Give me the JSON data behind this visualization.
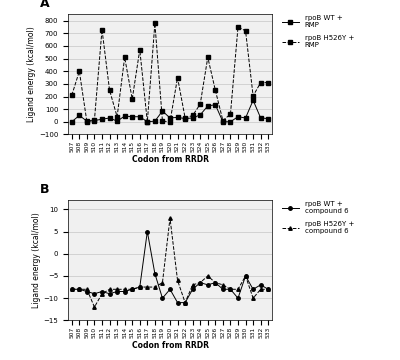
{
  "codons": [
    "507",
    "508",
    "509",
    "510",
    "511",
    "512",
    "513",
    "514",
    "515",
    "516",
    "517",
    "518",
    "519",
    "520",
    "521",
    "522",
    "523",
    "524",
    "525",
    "526",
    "527",
    "528",
    "529",
    "530",
    "531",
    "532",
    "533"
  ],
  "panel_A": {
    "wt_rmp": [
      0,
      50,
      5,
      10,
      20,
      30,
      5,
      45,
      40,
      40,
      0,
      5,
      85,
      30,
      35,
      25,
      30,
      55,
      125,
      135,
      0,
      0,
      40,
      30,
      170,
      30,
      25
    ],
    "h526y_rmp": [
      210,
      400,
      0,
      15,
      730,
      250,
      40,
      510,
      180,
      570,
      0,
      780,
      5,
      0,
      350,
      30,
      50,
      140,
      510,
      250,
      10,
      60,
      750,
      720,
      205,
      310,
      310
    ]
  },
  "panel_B": {
    "wt_c6": [
      -8,
      -8,
      -8.5,
      -9,
      -8.5,
      -9,
      -8.5,
      -8.5,
      -8,
      -7.5,
      5,
      -4.5,
      -10,
      -8,
      -11,
      -11,
      -8,
      -6.5,
      -7,
      -6.5,
      -8,
      -8,
      -10,
      -5,
      -8,
      -7,
      -8
    ],
    "h526y_c6": [
      -8,
      -8,
      -8,
      -12,
      -9,
      -8,
      -8,
      -8,
      -8,
      -7.5,
      -7.5,
      -7.5,
      -6.5,
      8,
      -6,
      -11,
      -7,
      -6.5,
      -5,
      -6.5,
      -7,
      -8,
      -8,
      -5,
      -10,
      -8,
      -8
    ]
  },
  "color": "#000000",
  "legend_A": [
    "rpoB WT +\nRMP",
    "rpoB H526Y +\nRMP"
  ],
  "legend_B": [
    "rpoB WT +\ncompound 6",
    "rpoB H526Y +\ncompound 6"
  ],
  "ylabel": "Ligand energy (kcal/mol)",
  "xlabel": "Codon from RRDR",
  "ylim_A": [
    -100,
    850
  ],
  "ylim_B": [
    -15,
    12
  ],
  "yticks_A": [
    -100,
    0,
    100,
    200,
    300,
    400,
    500,
    600,
    700,
    800
  ],
  "yticks_B": [
    -15,
    -10,
    -5,
    0,
    5,
    10
  ],
  "bg_color": "#f0f0f0"
}
